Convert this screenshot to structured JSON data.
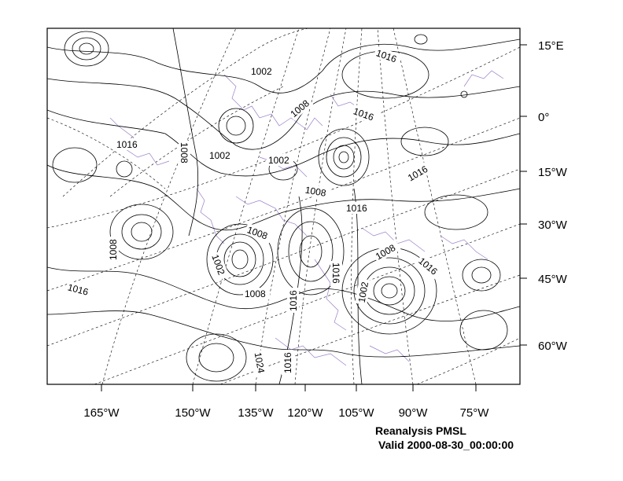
{
  "title": "Reanalysis PMSL",
  "valid_time": "Valid 2000-08-30_00:00:00",
  "colors": {
    "contour": "#000000",
    "coastline": "#9b7fc8",
    "graticule": "#000000"
  },
  "right_axis_labels": [
    "15°E",
    "0°",
    "15°W",
    "30°W",
    "45°W",
    "60°W"
  ],
  "bottom_axis_labels": [
    "165°W",
    "150°W",
    "135°W",
    "120°W",
    "105°W",
    "90°W",
    "75°W"
  ],
  "contour_labels": [
    "1002",
    "1008",
    "1016",
    "1016",
    "1008",
    "1002",
    "1002",
    "1016",
    "1008",
    "1016",
    "1016",
    "1008",
    "1008",
    "1002",
    "1008",
    "1016",
    "1016",
    "1008",
    "1016",
    "1002",
    "1016",
    "1024",
    "1016"
  ]
}
